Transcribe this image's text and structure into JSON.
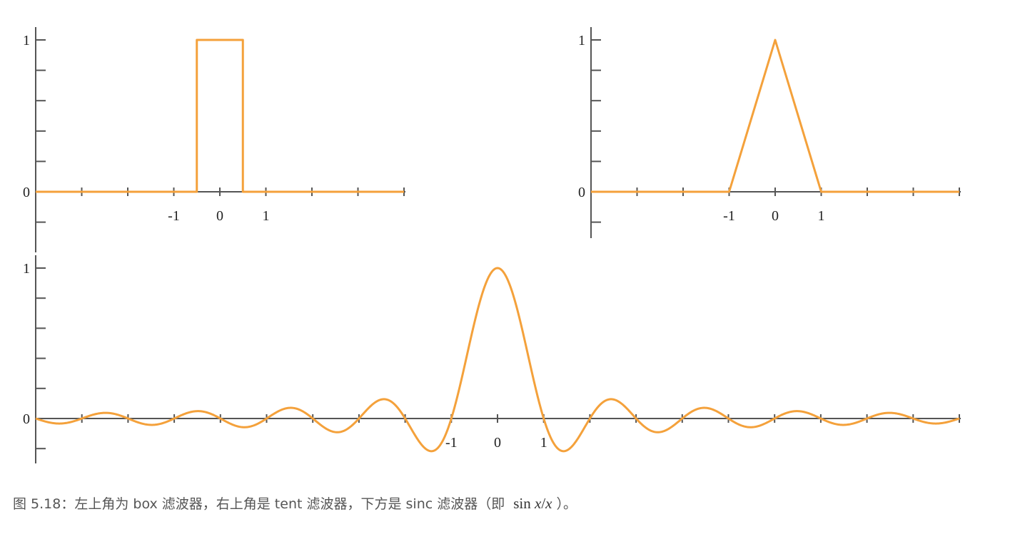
{
  "chart_data": [
    {
      "type": "line",
      "name": "box",
      "x": [
        -4,
        -0.5,
        -0.5,
        0.5,
        0.5,
        4
      ],
      "y": [
        0,
        0,
        1,
        1,
        0,
        0
      ],
      "xlim": [
        -4,
        4
      ],
      "ylim": [
        -0.2,
        1
      ],
      "x_ticks": [
        -4,
        -3,
        -2,
        -1,
        0,
        1,
        2,
        3,
        4
      ],
      "x_tick_labels": {
        "-1": "-1",
        "0": "0",
        "1": "1"
      },
      "y_ticks": [
        -0.2,
        0,
        0.2,
        0.4,
        0.6,
        0.8,
        1
      ],
      "y_tick_labels": {
        "0": "0",
        "1": "1"
      },
      "color": "#f4a13b",
      "grid": false
    },
    {
      "type": "line",
      "name": "tent",
      "x": [
        -4,
        -1,
        0,
        1,
        4
      ],
      "y": [
        0,
        0,
        1,
        0,
        0
      ],
      "xlim": [
        -4,
        4
      ],
      "ylim": [
        -0.3,
        1
      ],
      "x_ticks": [
        -4,
        -3,
        -2,
        -1,
        0,
        1,
        2,
        3,
        4
      ],
      "x_tick_labels": {
        "-1": "-1",
        "0": "0",
        "1": "1"
      },
      "y_ticks": [
        -0.2,
        0,
        0.2,
        0.4,
        0.6,
        0.8,
        1
      ],
      "y_tick_labels": {
        "0": "0",
        "1": "1"
      },
      "color": "#f4a13b",
      "grid": false
    },
    {
      "type": "line",
      "name": "sinc",
      "function": "sin(pi*x)/(pi*x)",
      "xlim": [
        -10,
        10
      ],
      "ylim": [
        -0.3,
        1
      ],
      "x_ticks": [
        -10,
        -9,
        -8,
        -7,
        -6,
        -5,
        -4,
        -3,
        -2,
        -1,
        0,
        1,
        2,
        3,
        4,
        5,
        6,
        7,
        8,
        9,
        10
      ],
      "x_tick_labels": {
        "-1": "-1",
        "0": "0",
        "1": "1"
      },
      "y_ticks": [
        -0.2,
        0,
        0.2,
        0.4,
        0.6,
        0.8,
        1
      ],
      "y_tick_labels": {
        "0": "0",
        "1": "1"
      },
      "color": "#f4a13b",
      "grid": false
    }
  ],
  "caption": {
    "text": "图 5.18：左上角为 box 滤波器，右上角是 tent 滤波器，下方是 sinc 滤波器（即",
    "formula_fn": "sin",
    "formula_var": "x",
    "formula_slash": "/",
    "formula_den": "x",
    "tail": "）。"
  }
}
